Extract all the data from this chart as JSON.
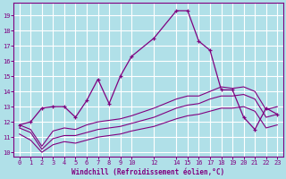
{
  "background_color": "#b0e0e8",
  "grid_color": "#ffffff",
  "line_color": "#800080",
  "xlabel": "Windchill (Refroidissement éolien,°C)",
  "xlabel_color": "#800080",
  "tick_color": "#800080",
  "xlim": [
    -0.5,
    23.5
  ],
  "ylim": [
    9.7,
    19.8
  ],
  "xticks": [
    0,
    1,
    2,
    3,
    4,
    5,
    6,
    7,
    8,
    9,
    10,
    12,
    14,
    15,
    16,
    17,
    18,
    19,
    20,
    21,
    22,
    23
  ],
  "yticks": [
    10,
    11,
    12,
    13,
    14,
    15,
    16,
    17,
    18,
    19
  ],
  "series1_x": [
    0,
    1,
    2,
    3,
    4,
    5,
    6,
    7,
    8,
    9,
    10,
    12,
    14,
    15,
    16,
    17,
    18,
    19,
    20,
    21,
    22,
    23
  ],
  "series1_y": [
    11.8,
    12.0,
    12.9,
    13.0,
    13.0,
    12.3,
    13.4,
    14.8,
    13.2,
    15.0,
    16.3,
    17.5,
    19.3,
    19.3,
    17.3,
    16.7,
    14.1,
    14.1,
    12.3,
    11.5,
    12.9,
    12.5
  ],
  "series2_x": [
    0,
    1,
    2,
    3,
    4,
    5,
    6,
    7,
    8,
    9,
    10,
    12,
    14,
    15,
    16,
    17,
    18,
    19,
    20,
    21,
    22,
    23
  ],
  "series2_y": [
    11.8,
    11.5,
    10.4,
    11.4,
    11.6,
    11.5,
    11.8,
    12.0,
    12.1,
    12.2,
    12.4,
    12.9,
    13.5,
    13.7,
    13.7,
    14.0,
    14.3,
    14.2,
    14.3,
    14.0,
    12.8,
    13.0
  ],
  "series3_x": [
    0,
    1,
    2,
    3,
    4,
    5,
    6,
    7,
    8,
    9,
    10,
    12,
    14,
    15,
    16,
    17,
    18,
    19,
    20,
    21,
    22,
    23
  ],
  "series3_y": [
    11.6,
    11.3,
    10.2,
    10.9,
    11.1,
    11.1,
    11.3,
    11.5,
    11.6,
    11.7,
    11.9,
    12.3,
    12.9,
    13.1,
    13.2,
    13.5,
    13.7,
    13.7,
    13.8,
    13.5,
    12.3,
    12.5
  ],
  "series4_x": [
    0,
    1,
    2,
    3,
    4,
    5,
    6,
    7,
    8,
    9,
    10,
    12,
    14,
    15,
    16,
    17,
    18,
    19,
    20,
    21,
    22,
    23
  ],
  "series4_y": [
    11.2,
    10.8,
    10.0,
    10.5,
    10.7,
    10.6,
    10.8,
    11.0,
    11.1,
    11.2,
    11.4,
    11.7,
    12.2,
    12.4,
    12.5,
    12.7,
    12.9,
    12.9,
    13.0,
    12.7,
    11.6,
    11.8
  ]
}
